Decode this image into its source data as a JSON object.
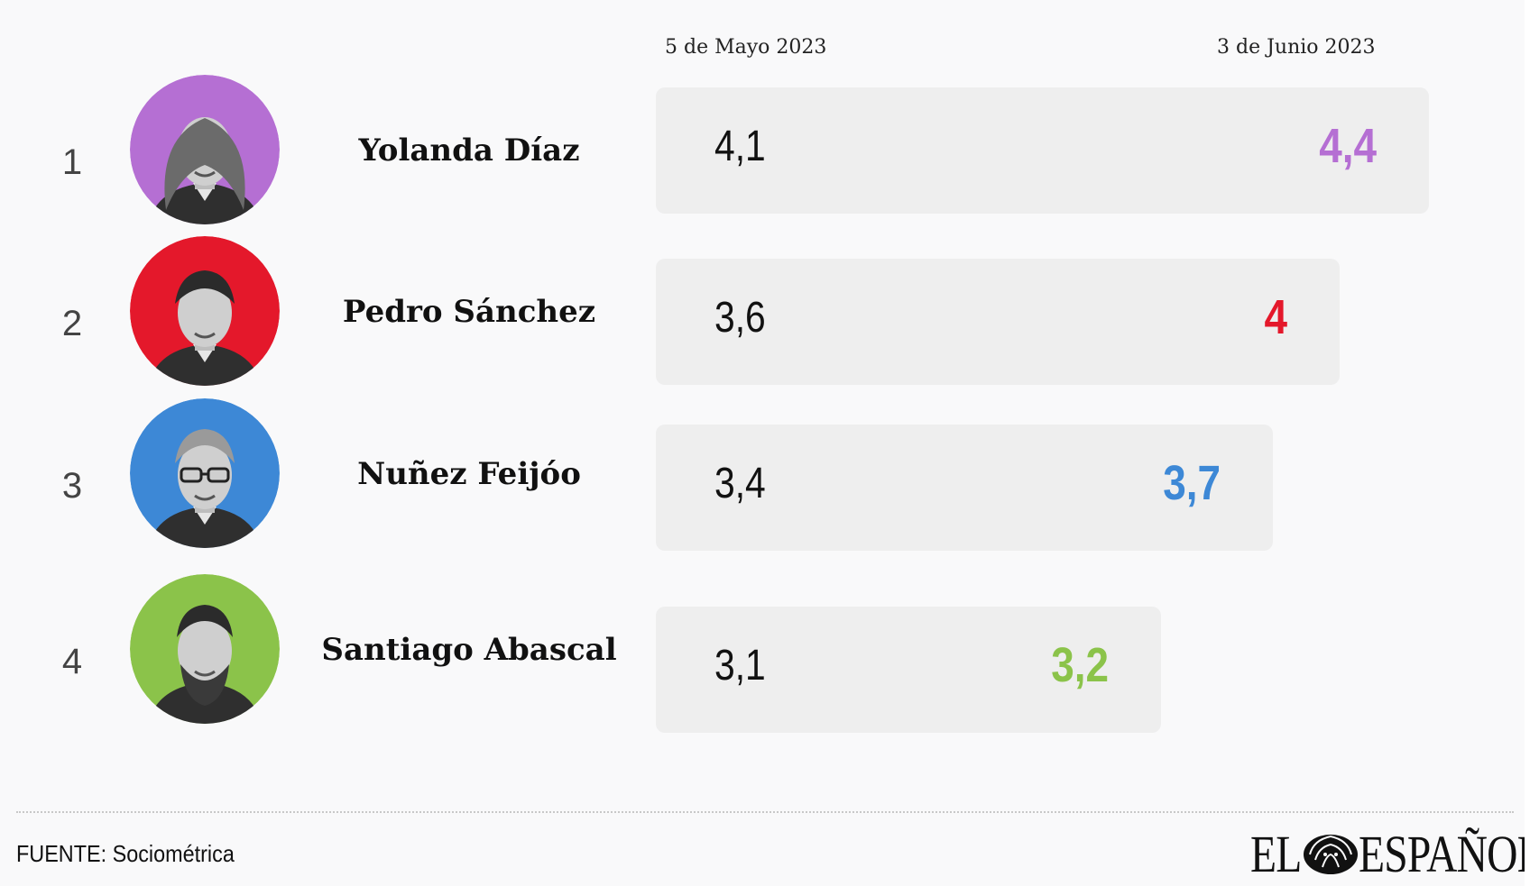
{
  "chart_data": {
    "type": "table",
    "columns": [
      "5 de Mayo 2023",
      "3 de Junio 2023"
    ],
    "rows": [
      {
        "rank": "1",
        "name": "Yolanda Díaz",
        "start": 4.1,
        "start_label": "4,1",
        "end": 4.4,
        "end_label": "4,4",
        "color": "#b56fd3",
        "photo": "portrait-yolanda-diaz"
      },
      {
        "rank": "2",
        "name": "Pedro Sánchez",
        "start": 3.6,
        "start_label": "3,6",
        "end": 4.0,
        "end_label": "4",
        "color": "#e4182b",
        "photo": "portrait-pedro-sanchez"
      },
      {
        "rank": "3",
        "name": "Nuñez Feijóo",
        "start": 3.4,
        "start_label": "3,4",
        "end": 3.7,
        "end_label": "3,7",
        "color": "#3d88d6",
        "photo": "portrait-nunez-feijoo"
      },
      {
        "rank": "4",
        "name": "Santiago Abascal",
        "start": 3.1,
        "start_label": "3,1",
        "end": 3.2,
        "end_label": "3,2",
        "color": "#8bc34a",
        "photo": "portrait-santiago-abascal"
      }
    ]
  },
  "footer": {
    "source": "FUENTE: Sociométrica",
    "logo_text_left": "EL",
    "logo_text_right": "ESPAÑOL",
    "logo_icon": "lion-icon"
  }
}
